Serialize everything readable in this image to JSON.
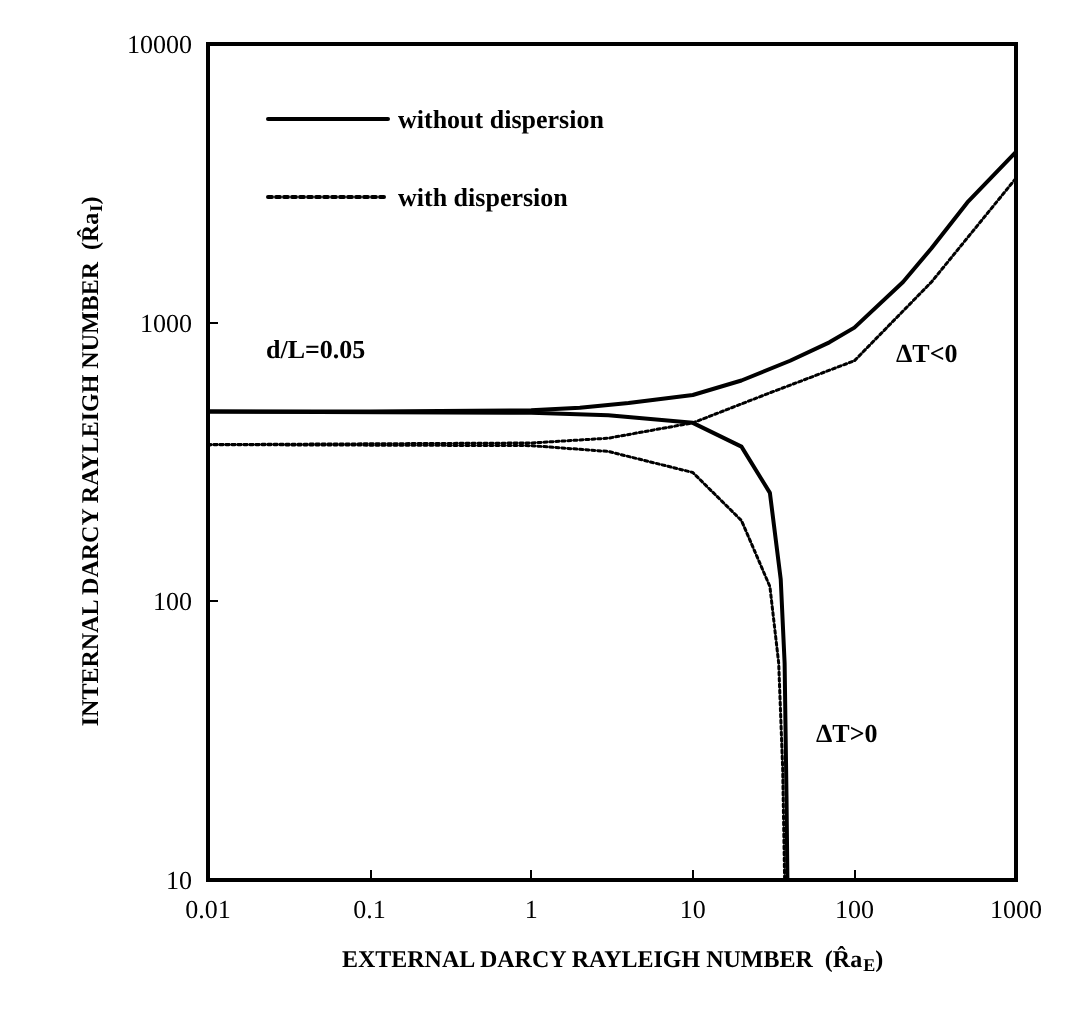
{
  "chart_data": {
    "type": "line",
    "xlabel": "EXTERNAL DARCY RAYLEIGH NUMBER  (R̂a$_{E}$)",
    "ylabel": "INTERNAL DARCY RAYLEIGH NUMBER  (R̂a$_{I}$)",
    "log": "xy",
    "grid": false,
    "legend": "top left",
    "marker": "none",
    "xlim": [
      0.01,
      1000
    ],
    "xticks": [
      0.01,
      0.1,
      1,
      10,
      100,
      1000
    ],
    "ylim": [
      10,
      10000
    ],
    "yticks": [
      10,
      100,
      1000,
      10000
    ],
    "series": [
      {
        "name": "without dispersion",
        "color": "#000000",
        "line_style": "solid",
        "x": [
          0.01,
          0.1,
          1,
          2,
          4,
          10,
          20,
          40,
          70,
          100,
          200,
          300,
          500,
          1000
        ],
        "values": [
          480,
          480,
          485,
          495,
          515,
          550,
          620,
          730,
          850,
          960,
          1400,
          1850,
          2700,
          4100
        ]
      },
      {
        "color": "#000000",
        "line_style": "solid",
        "x": [
          0.01,
          1,
          3,
          10,
          20,
          30,
          35,
          37,
          38,
          38.5
        ],
        "values": [
          480,
          475,
          465,
          437,
          359,
          245,
          120,
          60,
          20,
          10
        ]
      },
      {
        "name": "with dispersion",
        "color": "#000000",
        "line_style": "dotted",
        "x": [
          0.01,
          1,
          3,
          10,
          30,
          100,
          300,
          1000
        ],
        "values": [
          365,
          370,
          385,
          437,
          560,
          730,
          1400,
          3300
        ]
      },
      {
        "color": "#000000",
        "line_style": "dotted",
        "x": [
          0.01,
          1,
          3,
          10,
          20,
          30,
          34,
          36,
          37
        ],
        "values": [
          365,
          362,
          345,
          290,
          195,
          113,
          60,
          25,
          10
        ]
      }
    ],
    "annotations": [
      "d/L=0.05",
      "ΔT<0",
      "ΔT>0"
    ]
  }
}
